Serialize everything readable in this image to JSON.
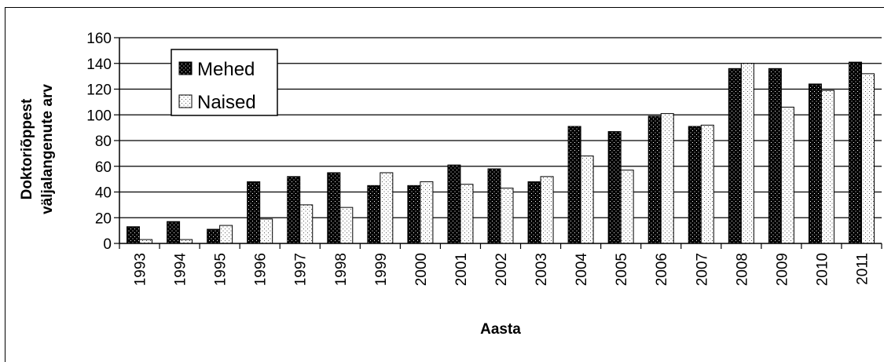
{
  "chart_data": {
    "type": "bar",
    "xlabel": "Aasta",
    "ylabel_line1": "Doktoriõppest",
    "ylabel_line2": "väljalangenute arv",
    "ylim": [
      0,
      160
    ],
    "yticks": [
      0,
      20,
      40,
      60,
      80,
      100,
      120,
      140,
      160
    ],
    "grid": true,
    "legend_position": "top-left",
    "categories": [
      "1993",
      "1994",
      "1995",
      "1996",
      "1997",
      "1998",
      "1999",
      "2000",
      "2001",
      "2002",
      "2003",
      "2004",
      "2005",
      "2006",
      "2007",
      "2008",
      "2009",
      "2010",
      "2011"
    ],
    "series": [
      {
        "name": "Mehed",
        "pattern": "dark-dotted",
        "color": "#000000",
        "values": [
          13,
          17,
          11,
          48,
          52,
          55,
          45,
          45,
          61,
          58,
          48,
          91,
          87,
          99,
          91,
          136,
          136,
          124,
          141
        ]
      },
      {
        "name": "Naised",
        "pattern": "light-dotted",
        "color": "#ffffff",
        "values": [
          3,
          3,
          14,
          19,
          30,
          28,
          55,
          48,
          46,
          43,
          52,
          68,
          57,
          101,
          92,
          140,
          106,
          119,
          132
        ]
      }
    ]
  }
}
